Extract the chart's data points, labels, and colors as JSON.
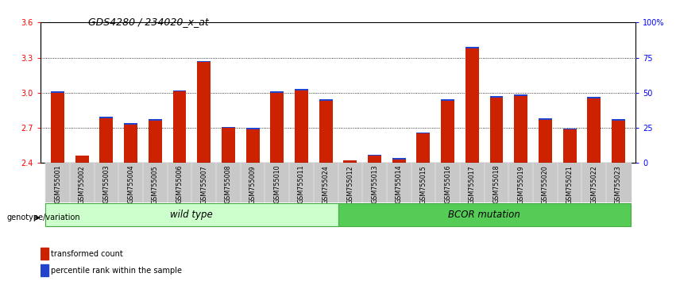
{
  "title": "GDS4280 / 234020_x_at",
  "samples": [
    "GSM755001",
    "GSM755002",
    "GSM755003",
    "GSM755004",
    "GSM755005",
    "GSM755006",
    "GSM755007",
    "GSM755008",
    "GSM755009",
    "GSM755010",
    "GSM755011",
    "GSM755024",
    "GSM755012",
    "GSM755013",
    "GSM755014",
    "GSM755015",
    "GSM755016",
    "GSM755017",
    "GSM755018",
    "GSM755019",
    "GSM755020",
    "GSM755021",
    "GSM755022",
    "GSM755023"
  ],
  "red_values": [
    3.0,
    2.46,
    2.78,
    2.73,
    2.76,
    3.01,
    3.26,
    2.7,
    2.69,
    3.0,
    3.02,
    2.93,
    2.42,
    2.46,
    2.43,
    2.65,
    2.93,
    3.38,
    2.96,
    2.97,
    2.77,
    2.69,
    2.95,
    2.76
  ],
  "blue_heights": [
    0.012,
    0.005,
    0.012,
    0.01,
    0.012,
    0.012,
    0.012,
    0.01,
    0.01,
    0.012,
    0.012,
    0.012,
    0.005,
    0.007,
    0.01,
    0.01,
    0.012,
    0.015,
    0.01,
    0.012,
    0.01,
    0.005,
    0.012,
    0.012
  ],
  "group1_count": 12,
  "group2_count": 12,
  "group1_label": "wild type",
  "group2_label": "BCOR mutation",
  "group1_color": "#ccffcc",
  "group2_color": "#55cc55",
  "ymin": 2.4,
  "ymax": 3.6,
  "yticks_left": [
    2.4,
    2.7,
    3.0,
    3.3,
    3.6
  ],
  "yticks_right": [
    0,
    25,
    50,
    75,
    100
  ],
  "ytick_labels_right": [
    "0",
    "25",
    "50",
    "75",
    "100%"
  ],
  "dotted_lines": [
    2.7,
    3.0,
    3.3
  ],
  "bar_color": "#cc2200",
  "blue_color": "#2244cc",
  "bar_width": 0.55,
  "title_fontsize": 9,
  "tick_fontsize": 7,
  "label_fontsize": 8,
  "group_label_fontsize": 8.5
}
